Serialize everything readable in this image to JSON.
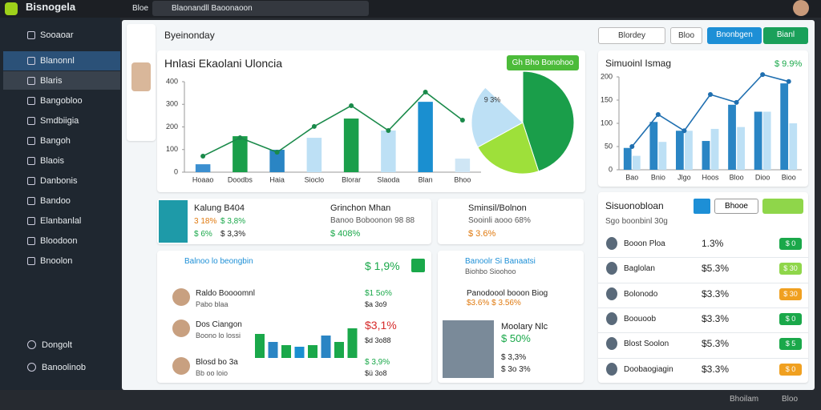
{
  "top_bar": {
    "app_name": "Bisnogela",
    "menu": "Bloe",
    "search": "Blaonandll Baoonaoon"
  },
  "sidebar": {
    "items": [
      "Sooaoar",
      "Blanonnl",
      "Blaris",
      "Bangobloo",
      "Smdbiigia",
      "Bangoh",
      "Blaois",
      "Danbonis",
      "Bandoo",
      "Elanbanlal",
      "Bloodoon",
      "Bnoolon"
    ],
    "footer": [
      "Dongolt",
      "Banoolinob"
    ]
  },
  "toolbar": {
    "title": "Byeinonday",
    "dropdown": "Blordey",
    "button1": "Bloo",
    "button2": "Bnonbgen",
    "button3": "Bianl"
  },
  "main_chart": {
    "type": "bar",
    "title": "Hnlasi Ekaolani Uloncia",
    "action": "Gh Bho Bonohoo",
    "categories": [
      "Hoaao",
      "Doodbs",
      "Haia",
      "Sioclo",
      "Blorar",
      "Slaoda",
      "Blan",
      "Bhoo"
    ],
    "values": [
      35,
      159,
      99,
      152,
      237,
      184,
      311,
      60
    ],
    "colors": [
      "#3b8fd0",
      "#1a9e4a",
      "#2a85c4",
      "#bde0f5",
      "#1a9e4a",
      "#bde0f5",
      "#1a8fd0",
      "#cfe6f5"
    ],
    "line": {
      "color": "#1a8a4a",
      "values": [
        71,
        152,
        88,
        202,
        294,
        184,
        354,
        230
      ]
    },
    "ylim": [
      0,
      400
    ],
    "yticks": [
      0,
      100,
      200,
      300,
      400
    ]
  },
  "pie": {
    "type": "pie",
    "label": "9 3%",
    "values": [
      45,
      22,
      20,
      13
    ],
    "colors": [
      "#1a9e4a",
      "#9ee03a",
      "#bde0f5",
      "#ffffff"
    ]
  },
  "side_chart": {
    "type": "bar",
    "title": "Simuoinl Ismag",
    "change": "$ 9.9%",
    "categories": [
      "Bao",
      "Bnio",
      "Jlgo",
      "Hoos",
      "Bloo",
      "Dioo",
      "Bioo"
    ],
    "series": [
      {
        "color": "#2a85c4",
        "values": [
          47,
          103,
          84,
          62,
          140,
          125,
          186
        ]
      },
      {
        "color": "#bde0f5",
        "values": [
          30,
          60,
          84,
          88,
          92,
          125,
          100
        ]
      }
    ],
    "line": {
      "color": "#1f6fb0",
      "values": [
        50,
        119,
        84,
        162,
        145,
        205,
        190
      ]
    },
    "ylim": [
      0,
      200
    ],
    "yticks": [
      0,
      50,
      100,
      150,
      200
    ]
  },
  "card_kalung": {
    "title": "Kalung B404",
    "stat1": "3 18%",
    "stat2": "$ 3,8%",
    "stat3": "$ 6%",
    "stat4": "$ 3,3%",
    "sub_title": "Grinchon Mhan",
    "sub_text": "Banoo Boboonon 98 88",
    "sub_value": "$ 408%"
  },
  "card_sminsil": {
    "title": "Sminsil/Bolnon",
    "text": "Sooinli aooo 68%",
    "value": "$ 3.6%"
  },
  "card_balnoo": {
    "title": "Balnoo lo beongbin",
    "value": "$ 1,9%",
    "rows": [
      {
        "name": "Raldo Boooomnl",
        "sub": "Pabo blaa",
        "value": "$1 5o%",
        "value2": "$a 3o9"
      },
      {
        "name": "Dos Ciangon",
        "sub": "Boono lo lossi",
        "value": "$3,1%",
        "value2": "$d 3o88"
      },
      {
        "name": "Blosd bo 3a",
        "sub": "Bb oo loio",
        "value": "$ 3,9%",
        "value2": "$ü 3o8"
      }
    ]
  },
  "mini_bars": {
    "type": "bar",
    "values": [
      30,
      20,
      16,
      14,
      16,
      28,
      20,
      37
    ],
    "colors": [
      "#1aa84a",
      "#2a85c4",
      "#1aa84a",
      "#1a8fd0",
      "#1aa84a",
      "#2a85c4",
      "#1aa84a",
      "#1aa84a"
    ]
  },
  "card_banoolr": {
    "title": "Banoolr Si Banaatsi",
    "subtitle": "Biohbo Sioohoo",
    "row_title": "Panodoool booon Biog",
    "row_values": "$3.6%  $ 3.56%",
    "person": "Moolary Nlc",
    "value1": "$ 50%",
    "value2": "$ 3,3%",
    "value3": "$ 3o 3%"
  },
  "list": {
    "title": "Sisuonobloan",
    "subtitle": "Sgo boonbinl 30g",
    "button": "Bhooe",
    "rows": [
      {
        "name": "Booon Ploa",
        "value": "1.3%",
        "button": "$ 0"
      },
      {
        "name": "Baglolan",
        "value": "$5.3%",
        "button": "$ 30"
      },
      {
        "name": "Bolonodo",
        "value": "$3.3%",
        "button": "$ 30"
      },
      {
        "name": "Boouoob",
        "value": "$3.3%",
        "button": "$ 0"
      },
      {
        "name": "Blost Soolon",
        "value": "$5.3%",
        "button": "$ 5"
      },
      {
        "name": "Doobaogiagin",
        "value": "$3.3%",
        "button": "$ 0"
      }
    ]
  },
  "footer": [
    "Bhoilam",
    "Bloo"
  ]
}
